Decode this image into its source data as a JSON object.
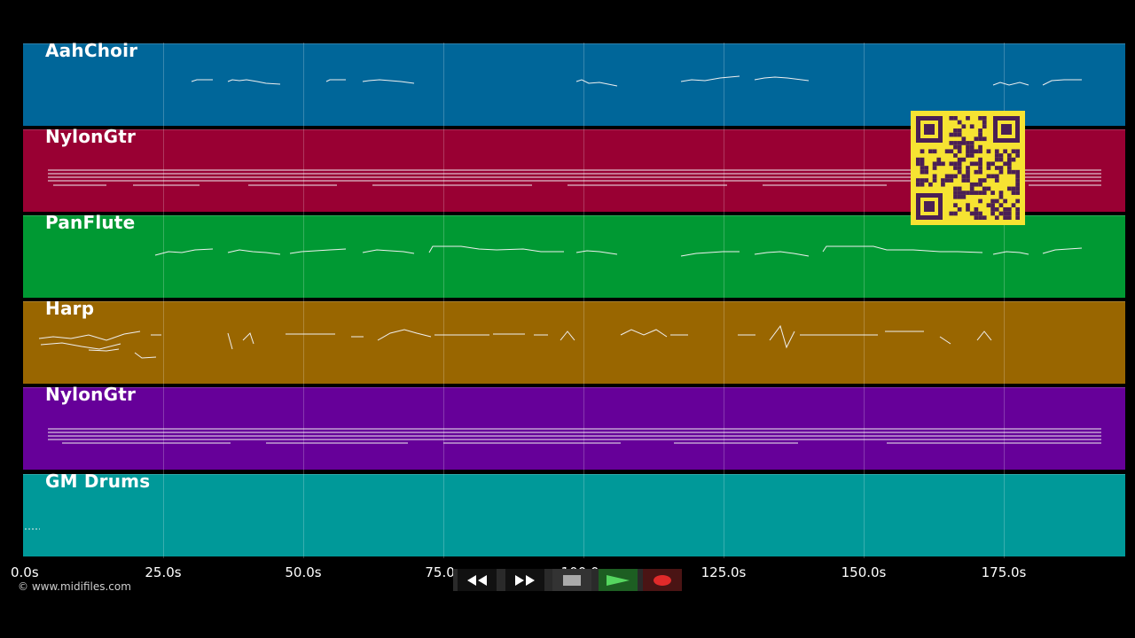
{
  "tracks": [
    {
      "name": "AahChoir",
      "color": "#006699"
    },
    {
      "name": "NylonGtr",
      "color": "#990033"
    },
    {
      "name": "PanFlute",
      "color": "#009933"
    },
    {
      "name": "Harp",
      "color": "#996600"
    },
    {
      "name": "NylonGtr",
      "color": "#660099"
    },
    {
      "name": "GM Drums",
      "color": "#009999"
    }
  ],
  "timeline": {
    "ticks": [
      "0.0s",
      "25.0s",
      "50.0s",
      "75.0s",
      "100.0s",
      "125.0s",
      "150.0s",
      "175.0s"
    ]
  },
  "footer": {
    "copyright": "© www.midifiles.com"
  },
  "transport": {
    "buttons": [
      {
        "name": "rewind-button",
        "icon": "rewind-icon"
      },
      {
        "name": "fast-forward-button",
        "icon": "fast-forward-icon"
      },
      {
        "name": "stop-button",
        "icon": "stop-icon"
      },
      {
        "name": "play-button",
        "icon": "play-icon"
      },
      {
        "name": "record-button",
        "icon": "record-icon"
      }
    ]
  },
  "qr_code": {
    "icon": "qr-code-icon"
  }
}
